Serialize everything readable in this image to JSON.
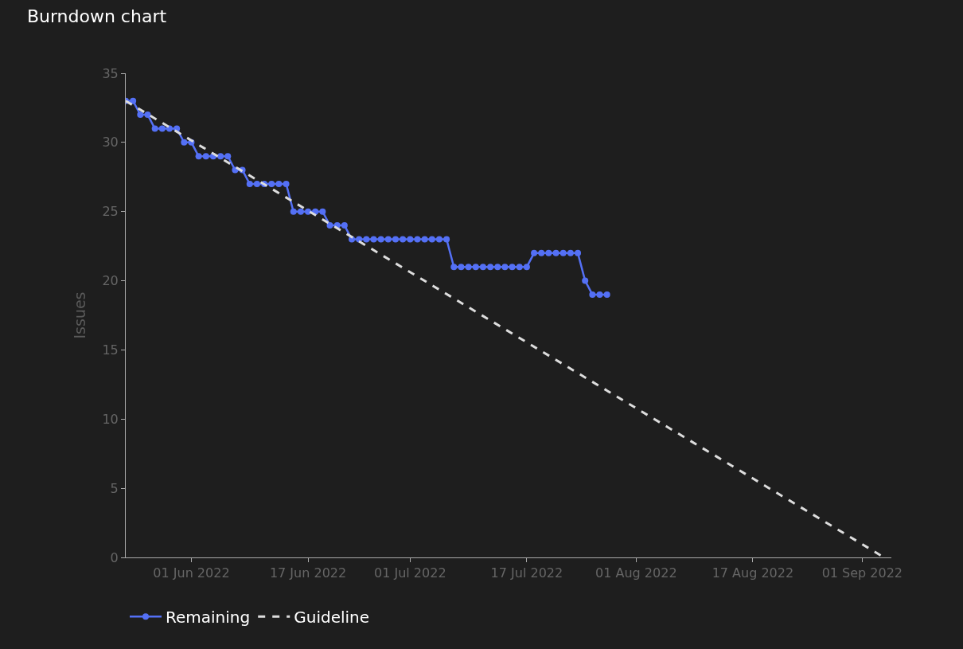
{
  "chart_data": {
    "type": "line",
    "title": "Burndown chart",
    "ylabel": "Issues",
    "series": [
      {
        "name": "Remaining",
        "color": "#5470f5",
        "marker": "circle",
        "line_style": "solid",
        "x": [
          "2022-05-23",
          "2022-05-24",
          "2022-05-25",
          "2022-05-26",
          "2022-05-27",
          "2022-05-28",
          "2022-05-29",
          "2022-05-30",
          "2022-05-31",
          "2022-06-01",
          "2022-06-02",
          "2022-06-03",
          "2022-06-04",
          "2022-06-05",
          "2022-06-06",
          "2022-06-07",
          "2022-06-08",
          "2022-06-09",
          "2022-06-10",
          "2022-06-11",
          "2022-06-12",
          "2022-06-13",
          "2022-06-14",
          "2022-06-15",
          "2022-06-16",
          "2022-06-17",
          "2022-06-18",
          "2022-06-19",
          "2022-06-20",
          "2022-06-21",
          "2022-06-22",
          "2022-06-23",
          "2022-06-24",
          "2022-06-25",
          "2022-06-26",
          "2022-06-27",
          "2022-06-28",
          "2022-06-29",
          "2022-06-30",
          "2022-07-01",
          "2022-07-02",
          "2022-07-03",
          "2022-07-04",
          "2022-07-05",
          "2022-07-06",
          "2022-07-07",
          "2022-07-08",
          "2022-07-09",
          "2022-07-10",
          "2022-07-11",
          "2022-07-12",
          "2022-07-13",
          "2022-07-14",
          "2022-07-15",
          "2022-07-16",
          "2022-07-17",
          "2022-07-18",
          "2022-07-19",
          "2022-07-20",
          "2022-07-21",
          "2022-07-22",
          "2022-07-23",
          "2022-07-24",
          "2022-07-25",
          "2022-07-26",
          "2022-07-27",
          "2022-07-28"
        ],
        "values": [
          33,
          33,
          32,
          32,
          31,
          31,
          31,
          31,
          30,
          30,
          29,
          29,
          29,
          29,
          29,
          28,
          28,
          27,
          27,
          27,
          27,
          27,
          27,
          25,
          25,
          25,
          25,
          25,
          24,
          24,
          24,
          23,
          23,
          23,
          23,
          23,
          23,
          23,
          23,
          23,
          23,
          23,
          23,
          23,
          23,
          21,
          21,
          21,
          21,
          21,
          21,
          21,
          21,
          21,
          21,
          21,
          22,
          22,
          22,
          22,
          22,
          22,
          22,
          20,
          19,
          19,
          19
        ]
      },
      {
        "name": "Guideline",
        "color": "#dddddd",
        "marker": "none",
        "line_style": "dashed",
        "x": [
          "2022-05-23",
          "2022-09-04"
        ],
        "values": [
          33,
          0
        ]
      }
    ],
    "xlim": [
      "2022-05-23",
      "2022-09-05"
    ],
    "xticks": [
      {
        "value": "2022-06-01",
        "label": "01 Jun 2022"
      },
      {
        "value": "2022-06-17",
        "label": "17 Jun 2022"
      },
      {
        "value": "2022-07-01",
        "label": "01 Jul 2022"
      },
      {
        "value": "2022-07-17",
        "label": "17 Jul 2022"
      },
      {
        "value": "2022-08-01",
        "label": "01 Aug 2022"
      },
      {
        "value": "2022-08-17",
        "label": "17 Aug 2022"
      },
      {
        "value": "2022-09-01",
        "label": "01 Sep 2022"
      }
    ],
    "ylim": [
      0,
      35
    ],
    "yticks": [
      0,
      5,
      10,
      15,
      20,
      25,
      30,
      35
    ],
    "grid": false,
    "legend": "bottom left"
  }
}
